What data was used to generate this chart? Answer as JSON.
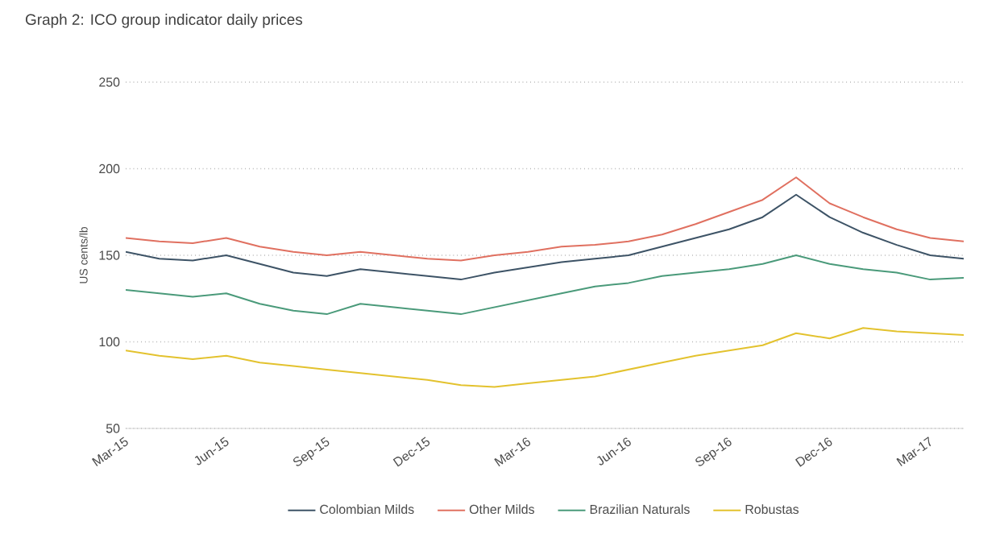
{
  "chart_data": {
    "type": "line",
    "title": "Graph 2: ICO group indicator daily prices",
    "ylabel": "US cents/lb",
    "x": [
      "2015-03",
      "2015-04",
      "2015-05",
      "2015-06",
      "2015-07",
      "2015-08",
      "2015-09",
      "2015-10",
      "2015-11",
      "2015-12",
      "2016-01",
      "2016-02",
      "2016-03",
      "2016-04",
      "2016-05",
      "2016-06",
      "2016-07",
      "2016-08",
      "2016-09",
      "2016-10",
      "2016-11",
      "2016-12",
      "2017-01",
      "2017-02",
      "2017-03",
      "2017-04"
    ],
    "series": [
      {
        "name": "Colombian Milds",
        "color": "#3d5366",
        "values": [
          152,
          148,
          147,
          150,
          145,
          140,
          138,
          142,
          140,
          138,
          136,
          140,
          143,
          146,
          148,
          150,
          155,
          160,
          165,
          172,
          185,
          172,
          163,
          156,
          150,
          148
        ]
      },
      {
        "name": "Other Milds",
        "color": "#e07060",
        "values": [
          160,
          158,
          157,
          160,
          155,
          152,
          150,
          152,
          150,
          148,
          147,
          150,
          152,
          155,
          156,
          158,
          162,
          168,
          175,
          182,
          195,
          180,
          172,
          165,
          160,
          158
        ]
      },
      {
        "name": "Brazilian Naturals",
        "color": "#4a9a7a",
        "values": [
          130,
          128,
          126,
          128,
          122,
          118,
          116,
          122,
          120,
          118,
          116,
          120,
          124,
          128,
          132,
          134,
          138,
          140,
          142,
          145,
          150,
          145,
          142,
          140,
          136,
          137
        ]
      },
      {
        "name": "Robustas",
        "color": "#e3c22e",
        "values": [
          95,
          92,
          90,
          92,
          88,
          86,
          84,
          82,
          80,
          78,
          75,
          74,
          76,
          78,
          80,
          84,
          88,
          92,
          95,
          98,
          105,
          102,
          108,
          106,
          105,
          104
        ]
      }
    ],
    "xlim": [
      "2015-03",
      "2017-04"
    ],
    "xticks": [
      {
        "value": "2015-03",
        "label": "Mar-15"
      },
      {
        "value": "2015-06",
        "label": "Jun-15"
      },
      {
        "value": "2015-09",
        "label": "Sep-15"
      },
      {
        "value": "2015-12",
        "label": "Dec-15"
      },
      {
        "value": "2016-03",
        "label": "Mar-16"
      },
      {
        "value": "2016-06",
        "label": "Jun-16"
      },
      {
        "value": "2016-09",
        "label": "Sep-16"
      },
      {
        "value": "2016-12",
        "label": "Dec-16"
      },
      {
        "value": "2017-03",
        "label": "Mar-17"
      }
    ],
    "ylim": [
      50,
      250
    ],
    "yticks": [
      50,
      100,
      150,
      200,
      250
    ],
    "grid": "y",
    "legend": "bottom",
    "marker": "none",
    "line_style": "solid"
  }
}
